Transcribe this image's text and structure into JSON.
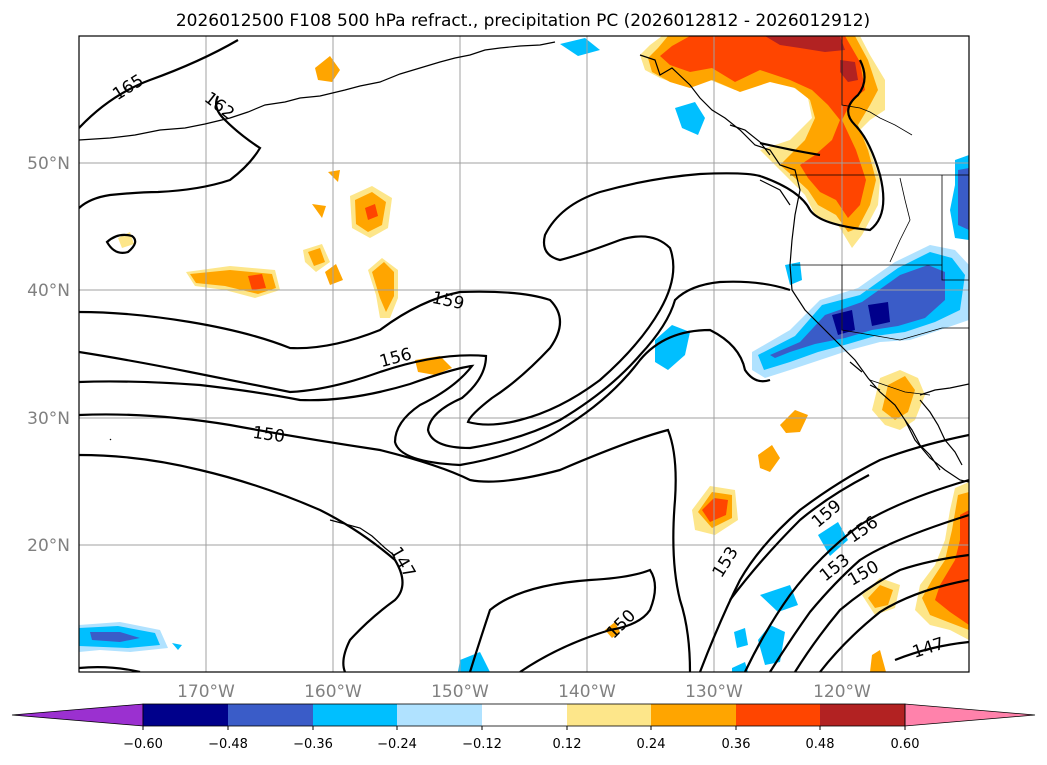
{
  "title": "2026012500 F108 500 hPa refract., precipitation PC (2026012812 - 2026012912)",
  "lat_ticks": [
    "50°N",
    "40°N",
    "30°N",
    "20°N"
  ],
  "lon_ticks": [
    "170°W",
    "160°W",
    "150°W",
    "140°W",
    "130°W",
    "120°W"
  ],
  "contour_labels": [
    "165",
    "162",
    "159",
    "156",
    "150",
    "147",
    "153",
    "159",
    "156",
    "153",
    "150",
    "150",
    "147"
  ],
  "colorbar": {
    "ticks": [
      "−0.60",
      "−0.48",
      "−0.36",
      "−0.24",
      "−0.12",
      "0.12",
      "0.24",
      "0.36",
      "0.48",
      "0.60"
    ],
    "colors": [
      "#9b30d0",
      "#00008b",
      "#3a5cc8",
      "#00bfff",
      "#b0e2ff",
      "#ffffff",
      "#fde68a",
      "#ffa500",
      "#ff4500",
      "#b22222",
      "#ff82ab"
    ]
  },
  "palette": {
    "light_yellow": "#fde68a",
    "orange": "#ffa500",
    "red_orange": "#ff4500",
    "dark_red": "#b22222",
    "light_blue": "#b0e2ff",
    "sky_blue": "#00bfff",
    "mid_blue": "#3a5cc8",
    "navy": "#00008b"
  }
}
